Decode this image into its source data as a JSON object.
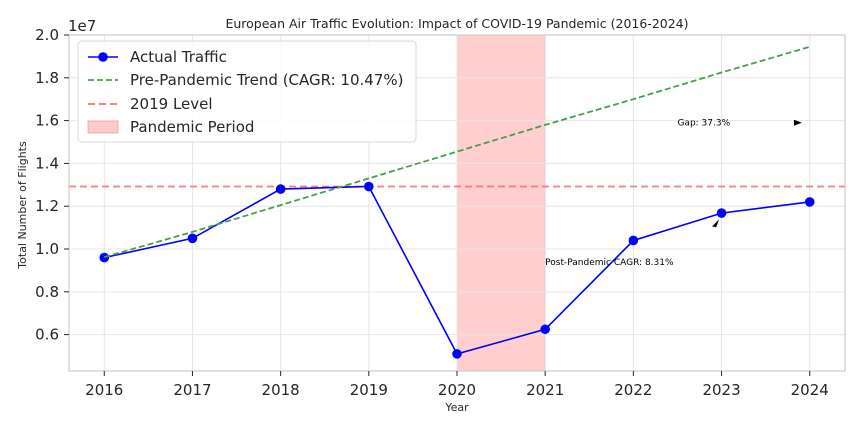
{
  "chart_data": {
    "type": "line",
    "title": "European Air Traffic Evolution: Impact of COVID-19 Pandemic (2016-2024)",
    "xlabel": "Year",
    "ylabel": "Total Number of Flights",
    "y_scale_label": "1e7",
    "xlim": [
      2015.6,
      2024.4
    ],
    "ylim": [
      4300000,
      20000000
    ],
    "x_ticks": [
      2016,
      2017,
      2018,
      2019,
      2020,
      2021,
      2022,
      2023,
      2024
    ],
    "y_ticks": [
      6000000,
      8000000,
      10000000,
      12000000,
      14000000,
      16000000,
      18000000,
      20000000
    ],
    "y_tick_labels": [
      "0.6",
      "0.8",
      "1.0",
      "1.2",
      "1.4",
      "1.6",
      "1.8",
      "2.0"
    ],
    "grid": true,
    "legend_position": "top-left",
    "series": [
      {
        "name": "Actual Traffic",
        "style": "solid-markers",
        "color": "#0000ff",
        "x": [
          2016,
          2017,
          2018,
          2019,
          2020,
          2021,
          2022,
          2023,
          2024
        ],
        "y": [
          9600000,
          10500000,
          12800000,
          12920000,
          5100000,
          6250000,
          10400000,
          11680000,
          12200000
        ]
      },
      {
        "name": "Pre-Pandemic Trend (CAGR: 10.47%)",
        "style": "dashed",
        "color": "#4a9e4a",
        "x": [
          2016,
          2017,
          2018,
          2019,
          2020,
          2021,
          2022,
          2023,
          2024
        ],
        "y": [
          9620000,
          10800000,
          12050000,
          13300000,
          14550000,
          15800000,
          17000000,
          18250000,
          19450000
        ]
      }
    ],
    "reference_line": {
      "name": "2019 Level",
      "value": 12920000,
      "color": "#ff6b6b"
    },
    "shaded_region": {
      "name": "Pandemic Period",
      "x_start": 2020,
      "x_end": 2021,
      "color": "#ffcccc"
    },
    "annotations": [
      {
        "text": "Gap: 37.3%",
        "x": 2022.5,
        "y": 15900000,
        "arrow_to": [
          2023.9,
          15900000
        ]
      },
      {
        "text": "Post-Pandemic CAGR: 8.31%",
        "x": 2021.0,
        "y": 9400000,
        "arrow_to": [
          2022.95,
          11200000
        ]
      }
    ]
  }
}
